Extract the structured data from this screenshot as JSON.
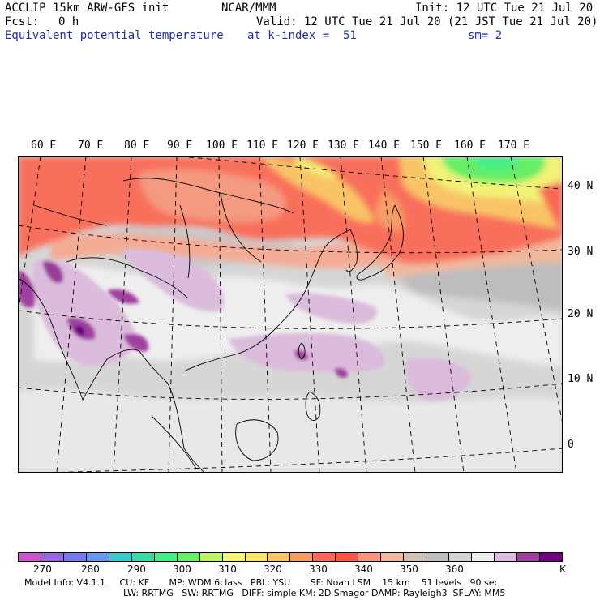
{
  "header": {
    "model": "ACCLIP 15km ARW-GFS init",
    "org": "NCAR/MMM",
    "init": "Init: 12 UTC Tue 21 Jul 20",
    "fcst_label": "Fcst:",
    "fcst_value": "0 h",
    "valid": "Valid: 12 UTC Tue 21 Jul 20 (21 JST Tue 21 Jul 20)",
    "field": "Equivalent potential temperature",
    "level": "at k-index =  51",
    "smooth": "sm= 2"
  },
  "map": {
    "lon_labels": [
      "60 E",
      "70 E",
      "80 E",
      "90 E",
      "100 E",
      "110 E",
      "120 E",
      "130 E",
      "140 E",
      "150 E",
      "160 E",
      "170 E"
    ],
    "lat_labels": [
      "40 N",
      "30 N",
      "20 N",
      "10 N",
      "0"
    ]
  },
  "colorbar": {
    "colors": [
      "#cc55cc",
      "#9966dd",
      "#7777ee",
      "#6699ee",
      "#33cccc",
      "#33ddaa",
      "#44ee88",
      "#66ee66",
      "#bbf266",
      "#f2f277",
      "#f8e466",
      "#f8c466",
      "#f89c66",
      "#f86855",
      "#ff5544",
      "#f89478",
      "#f2b69c",
      "#cfc0b4",
      "#bebebe",
      "#d2d2d2",
      "#f0f0f0",
      "#dcbcdc",
      "#a040a0",
      "#700080"
    ],
    "ticks": [
      "270",
      "280",
      "290",
      "300",
      "310",
      "320",
      "330",
      "340",
      "350",
      "360"
    ],
    "unit": "K"
  },
  "footer": {
    "line1": "Model Info: V4.1.1     CU: KF       MP: WDM 6class   PBL: YSU       SF: Noah LSM    15 km    51 levels   90 sec",
    "line2": "LW: RRTMG   SW: RRTMG   DIFF: simple KM: 2D Smagor DAMP: Rayleigh3  SFLAY: MM5"
  }
}
